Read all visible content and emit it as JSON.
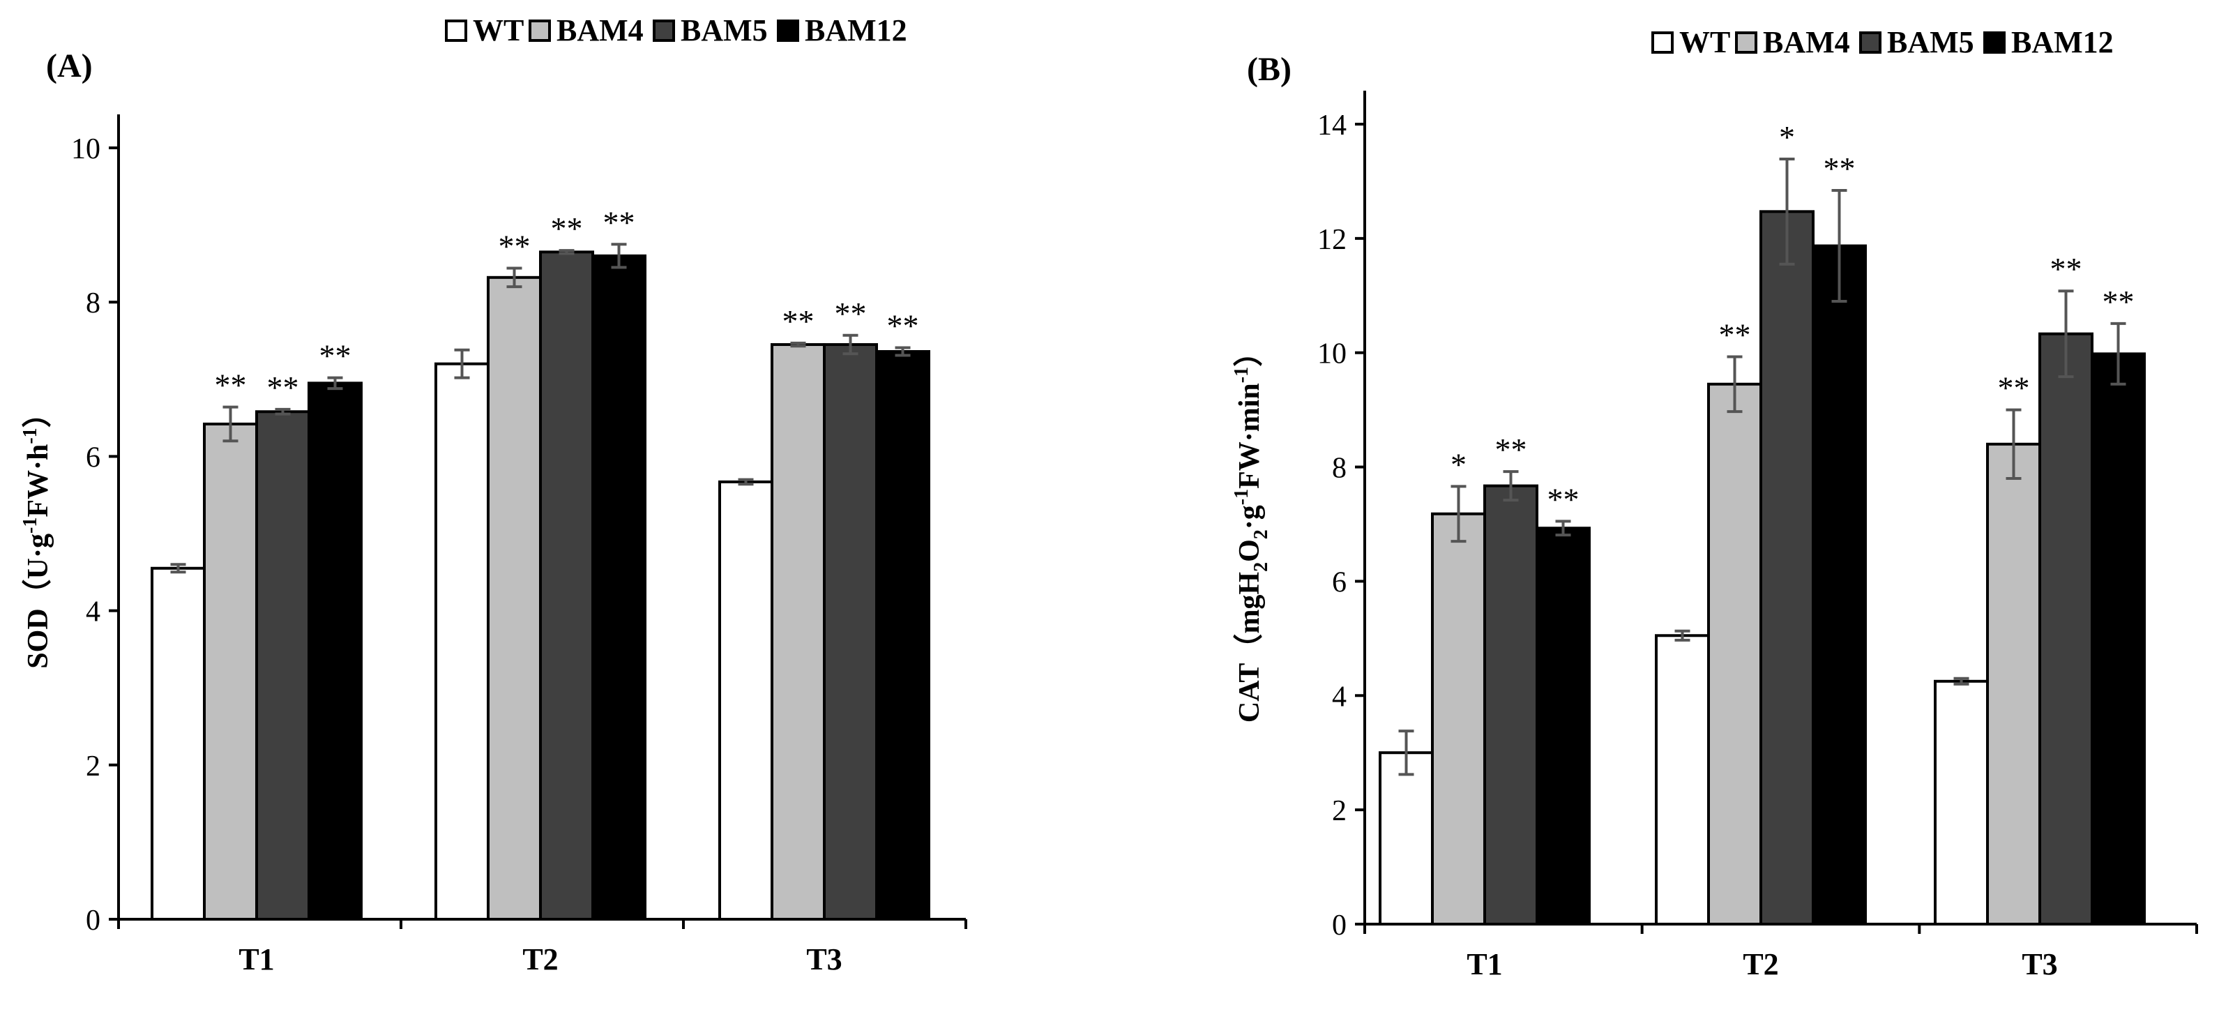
{
  "legend_labels": [
    "WT",
    "BAM4",
    "BAM5",
    "BAM12"
  ],
  "colors": {
    "WT": "#ffffff",
    "BAM4": "#bfbfbf",
    "BAM5": "#404040",
    "BAM12": "#000000",
    "outline": "#000000",
    "error": "#555555"
  },
  "chart_data": [
    {
      "type": "bar",
      "panel_label": "(A)",
      "title": "",
      "categories": [
        "T1",
        "T2",
        "T3"
      ],
      "xlabel": "",
      "ylabel_parts": {
        "main": "SOD",
        "unit": "（U·g",
        "sup": "-1",
        "mid": "FW·h",
        "sup2": "-1",
        "end": "）"
      },
      "ylim": [
        0,
        10
      ],
      "yticks": [
        0,
        2,
        4,
        6,
        8,
        10
      ],
      "series": [
        {
          "name": "WT",
          "values": [
            4.55,
            7.2,
            5.67
          ],
          "errors": [
            0.05,
            0.18,
            0.03
          ],
          "sig": [
            "",
            "",
            ""
          ]
        },
        {
          "name": "BAM4",
          "values": [
            6.42,
            8.32,
            7.45
          ],
          "errors": [
            0.22,
            0.12,
            0.02
          ],
          "sig": [
            "**",
            "**",
            "**"
          ]
        },
        {
          "name": "BAM5",
          "values": [
            6.58,
            8.65,
            7.45
          ],
          "errors": [
            0.03,
            0.02,
            0.12
          ],
          "sig": [
            "**",
            "**",
            "**"
          ]
        },
        {
          "name": "BAM12",
          "values": [
            6.95,
            8.6,
            7.36
          ],
          "errors": [
            0.07,
            0.15,
            0.05
          ],
          "sig": [
            "**",
            "**",
            "**"
          ]
        }
      ]
    },
    {
      "type": "bar",
      "panel_label": "(B)",
      "title": "",
      "categories": [
        "T1",
        "T2",
        "T3"
      ],
      "xlabel": "",
      "ylabel_parts": {
        "main": "CAT",
        "unit": "（mgH",
        "sub": "2",
        "o": "O",
        "sub2": "2",
        "mid": "·g",
        "sup": "-1",
        "mid2": "FW·min",
        "sup2": "-1",
        "end": "）"
      },
      "ylim": [
        0,
        14
      ],
      "yticks": [
        0,
        2,
        4,
        6,
        8,
        10,
        12,
        14
      ],
      "series": [
        {
          "name": "WT",
          "values": [
            3.0,
            5.05,
            4.25
          ],
          "errors": [
            0.38,
            0.08,
            0.05
          ],
          "sig": [
            "",
            "",
            ""
          ]
        },
        {
          "name": "BAM4",
          "values": [
            7.18,
            9.45,
            8.4
          ],
          "errors": [
            0.48,
            0.48,
            0.6
          ],
          "sig": [
            "*",
            "**",
            "**"
          ]
        },
        {
          "name": "BAM5",
          "values": [
            7.67,
            12.47,
            10.33
          ],
          "errors": [
            0.25,
            0.92,
            0.75
          ],
          "sig": [
            "**",
            "*",
            "**"
          ]
        },
        {
          "name": "BAM12",
          "values": [
            6.93,
            11.87,
            9.98
          ],
          "errors": [
            0.12,
            0.97,
            0.53
          ],
          "sig": [
            "**",
            "**",
            "**"
          ]
        }
      ]
    }
  ]
}
